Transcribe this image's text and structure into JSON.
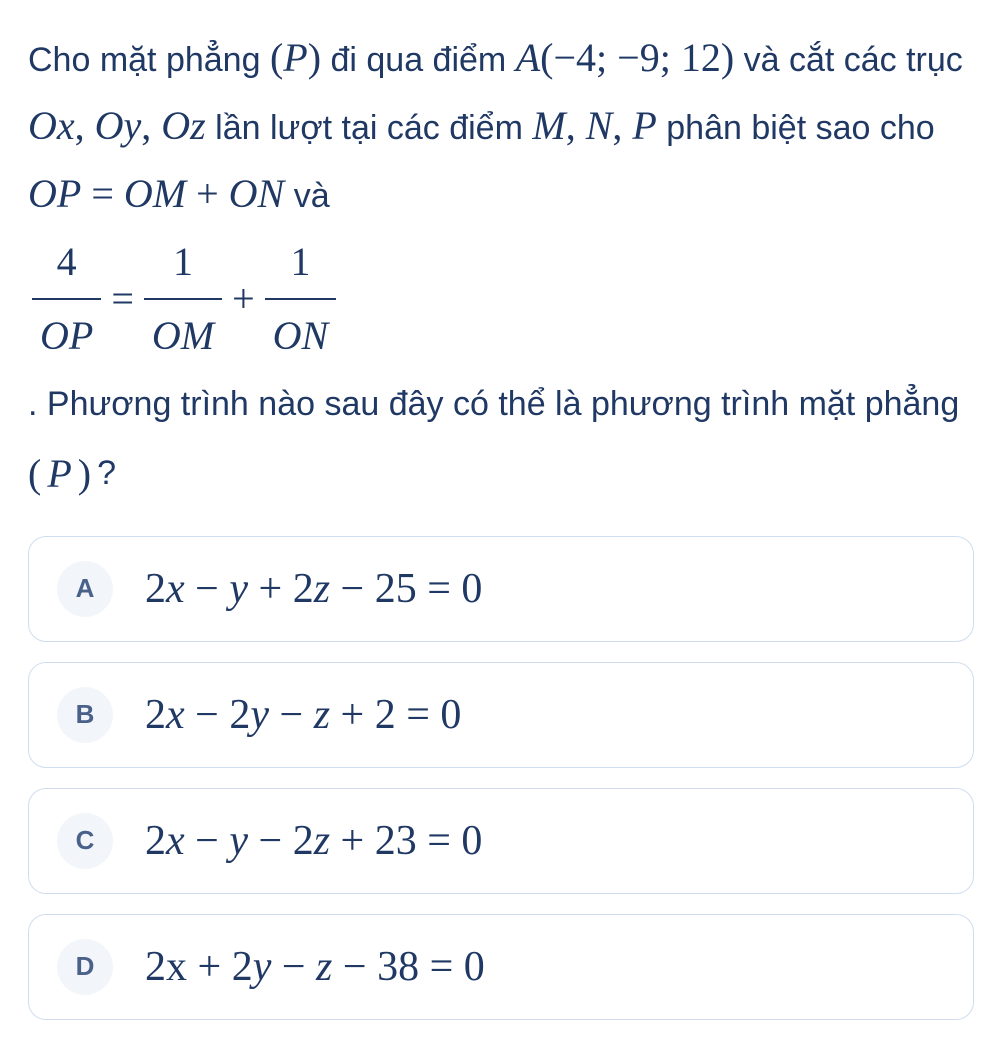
{
  "colors": {
    "text": "#1f3864",
    "badge_bg": "#f2f5fa",
    "badge_text": "#4a618a",
    "option_border": "#d0ddef",
    "background": "#ffffff"
  },
  "fontsizes": {
    "question_pt": 26,
    "math_pt": 30,
    "option_math_pt": 32,
    "badge_pt": 20
  },
  "question": {
    "t1": "Cho mặt phẳng ",
    "p_open": "(",
    "P": "P",
    "p_close": ")",
    "t2": " đi qua điểm ",
    "A": "A",
    "space_thin": " ",
    "lparen": "(",
    "Ax": "−4;",
    "Ay": " −9;",
    "Az": " 12",
    "rparen": ")",
    "t3": " và cắt các trục ",
    "Ox": "Ox",
    "comma1": ", ",
    "Oy": "Oy",
    "comma2": ", ",
    "Oz": "Oz",
    "t4": " lần lượt tại các điểm ",
    "M": "M",
    "comma3": ", ",
    "N": "N",
    "comma4": ", ",
    "Pp": "P",
    "t5": " phân biệt sao cho ",
    "eq1_lhs": "OP",
    "eq": " = ",
    "eq1_rhs1": "OM",
    "plus": " + ",
    "eq1_rhs2": "ON",
    "t6": " và",
    "frac1_num": "4",
    "frac1_den": "OP",
    "frac2_num": "1",
    "frac2_den": "OM",
    "frac3_num": "1",
    "frac3_den": "ON",
    "t7": " . Phương trình nào sau đây có thể là phương trình mặt phẳng ",
    "qmark": "?"
  },
  "options": [
    {
      "label": "A",
      "var1": "x",
      "c1": "2",
      "op1": " − ",
      "c2": "",
      "var2": "y",
      "op2": " + ",
      "c3": "2",
      "var3": "z",
      "op3": " − ",
      "k": "25",
      "eq0": " = 0"
    },
    {
      "label": "B",
      "var1": "x",
      "c1": "2",
      "op1": " − ",
      "c2": "2",
      "var2": "y",
      "op2": " − ",
      "c3": "",
      "var3": "z",
      "op3": " + ",
      "k": "2",
      "eq0": " = 0"
    },
    {
      "label": "C",
      "var1": "x",
      "c1": "2",
      "op1": " − ",
      "c2": "",
      "var2": "y",
      "op2": " − ",
      "c3": "2",
      "var3": "z",
      "op3": " + ",
      "k": "23",
      "eq0": " = 0"
    },
    {
      "label": "D",
      "var1": "x",
      "c1": "2",
      "op1": " + ",
      "c2": "2",
      "var2": "y",
      "op2": " − ",
      "c3": "",
      "var3": "z",
      "op3": " − ",
      "k": "38",
      "eq0": " = 0",
      "var1_style": "rm"
    }
  ]
}
